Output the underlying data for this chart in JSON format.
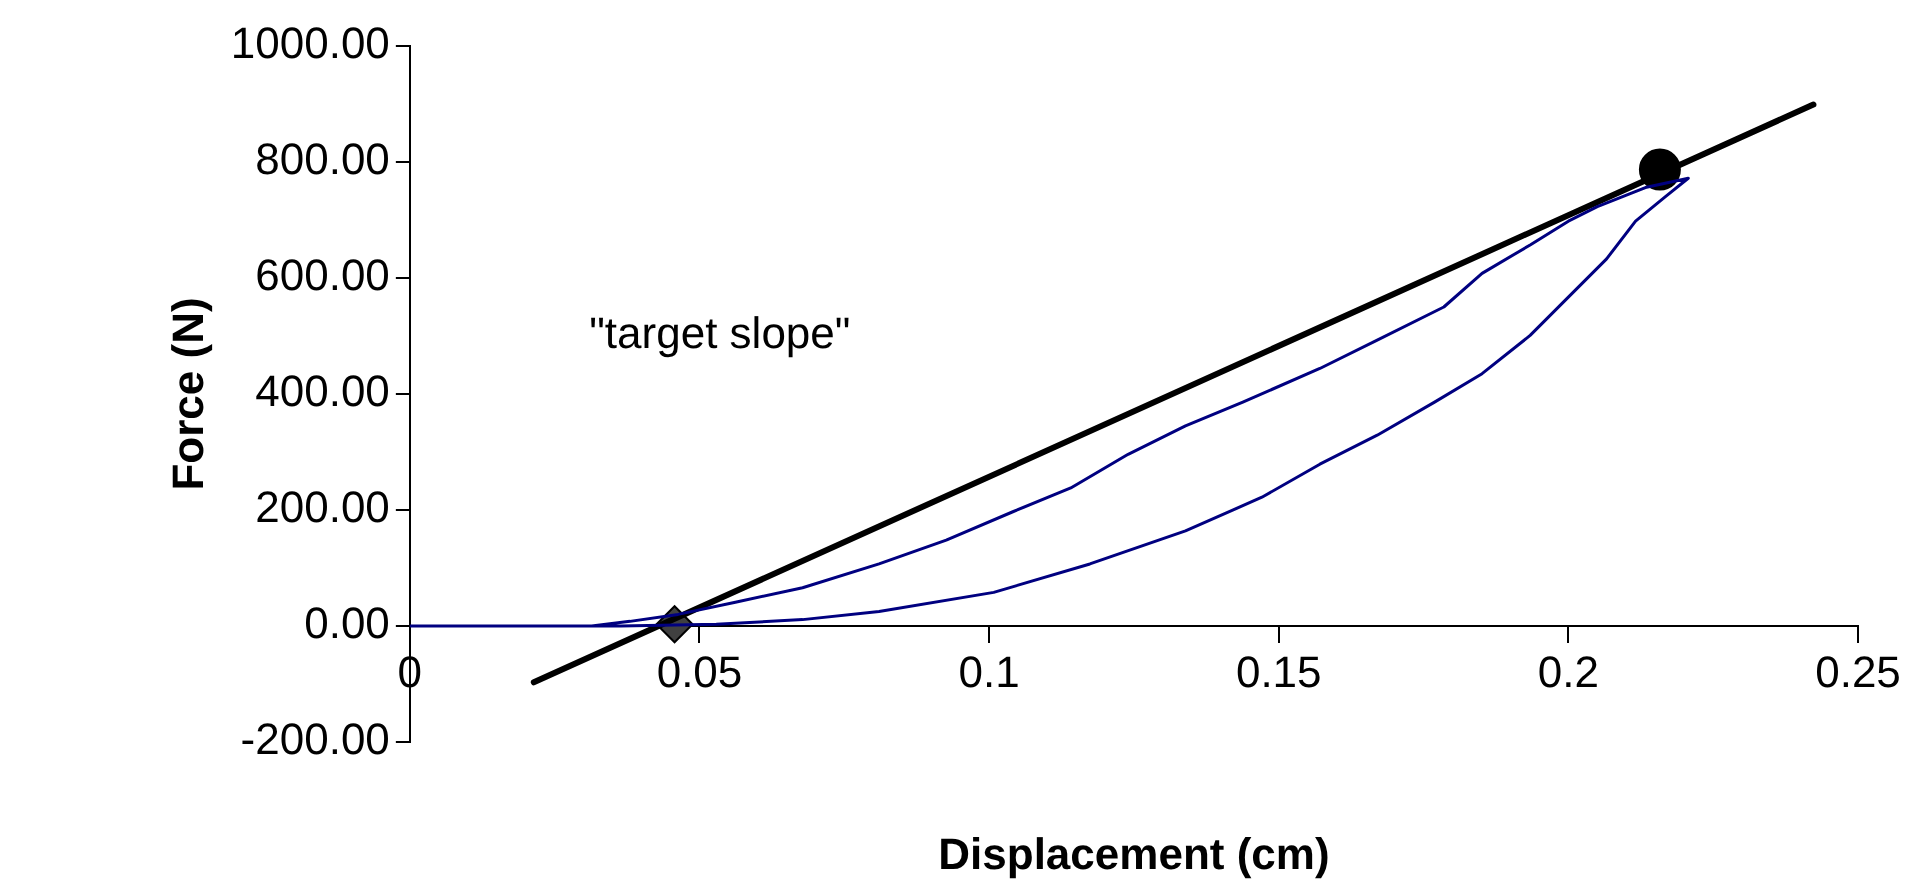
{
  "chart_data": {
    "type": "line",
    "xlabel": "Displacement (cm)",
    "ylabel": "Force (N)",
    "xlim": [
      0,
      0.25
    ],
    "xticks": [
      0,
      0.05,
      0.1,
      0.15,
      0.2,
      0.25
    ],
    "ylim": [
      -200,
      1000
    ],
    "yticks": [
      {
        "value": -200,
        "label": "-200.00"
      },
      {
        "value": 0,
        "label": "0.00"
      },
      {
        "value": 200,
        "label": "200.00"
      },
      {
        "value": 400,
        "label": "400.00"
      },
      {
        "value": 600,
        "label": "600.00"
      },
      {
        "value": 800,
        "label": "800.00"
      },
      {
        "value": 1000,
        "label": "1000.00"
      }
    ],
    "grid": false,
    "legend": false,
    "annotations": [
      "\"target slope\""
    ],
    "series": [
      {
        "color": "#000080",
        "marker": "none",
        "x": [
          0,
          0.0364,
          0.0529,
          0.0678,
          0.081,
          0.1008,
          0.1174,
          0.1339,
          0.1471,
          0.1571,
          0.167,
          0.1769,
          0.1851,
          0.1934,
          0.2,
          0.2066,
          0.2116,
          0.2166,
          0.2207,
          0.2133,
          0.205,
          0.2,
          0.1934,
          0.1851,
          0.1785,
          0.167,
          0.1571,
          0.1438,
          0.1339,
          0.124,
          0.1141,
          0.1041,
          0.0926,
          0.081,
          0.0678,
          0.0562,
          0.0463,
          0.038,
          0.0314
        ],
        "values": [
          0,
          0,
          3,
          11,
          25,
          58,
          107,
          164,
          222,
          279,
          329,
          386,
          435,
          501,
          567,
          633,
          698,
          739,
          772,
          756,
          723,
          698,
          657,
          608,
          550,
          493,
          444,
          386,
          345,
          296,
          238,
          197,
          148,
          107,
          66,
          41,
          20,
          8,
          0
        ]
      },
      {
        "color": "#000000",
        "marker": "none",
        "x": [
          0.0214,
          0.2423
        ],
        "values": [
          -97,
          899
        ]
      },
      {
        "type": "scatter",
        "color": "#404040",
        "marker": "diamond",
        "x": [
          0.0457
        ],
        "values": [
          3
        ]
      },
      {
        "type": "scatter",
        "color": "#000000",
        "marker": "circle",
        "x": [
          0.2158
        ],
        "values": [
          787
        ]
      }
    ]
  }
}
